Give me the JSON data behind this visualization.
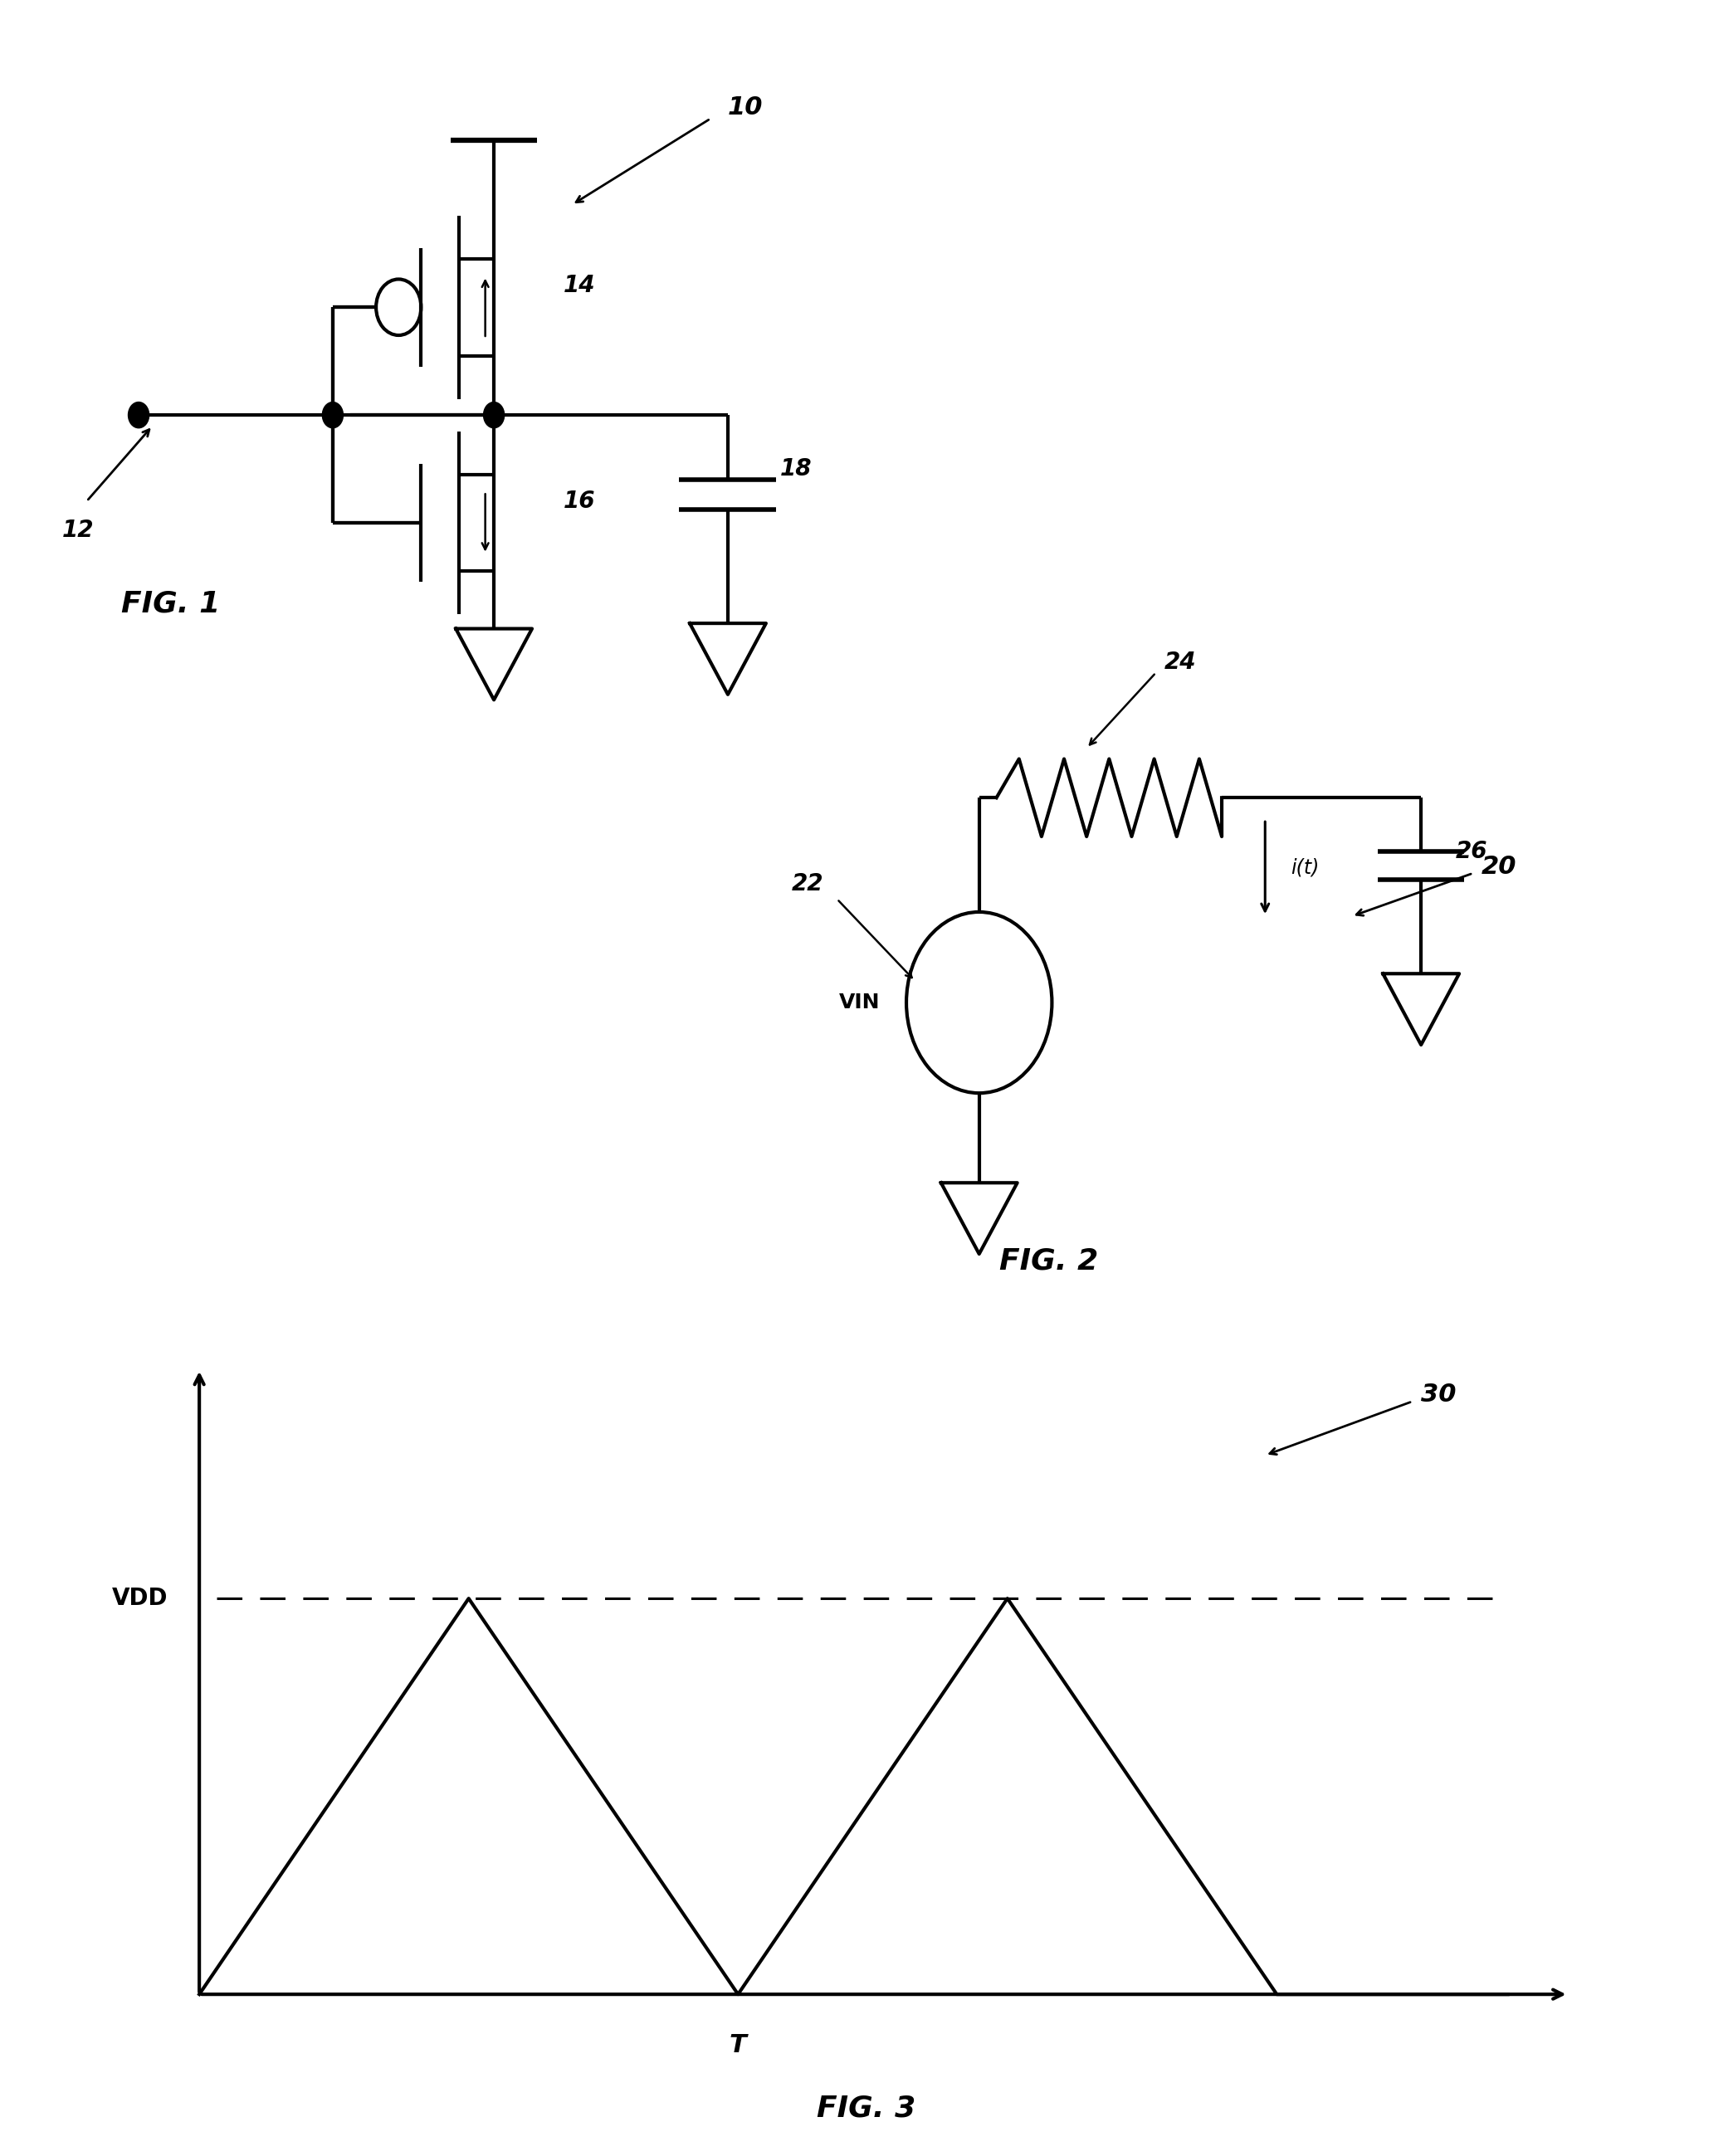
{
  "bg_color": "#ffffff",
  "line_color": "#000000",
  "fig_width": 20.88,
  "fig_height": 25.98,
  "fig1_label": "FIG. 1",
  "fig2_label": "FIG. 2",
  "fig3_label": "FIG. 3",
  "label_10": "10",
  "label_12": "12",
  "label_14": "14",
  "label_16": "16",
  "label_18": "18",
  "label_20": "20",
  "label_22": "22",
  "label_24": "24",
  "label_26": "26",
  "label_VIN": "VIN",
  "label_it": "i(t)",
  "label_VDD": "VDD",
  "label_T": "T",
  "label_30": "30"
}
